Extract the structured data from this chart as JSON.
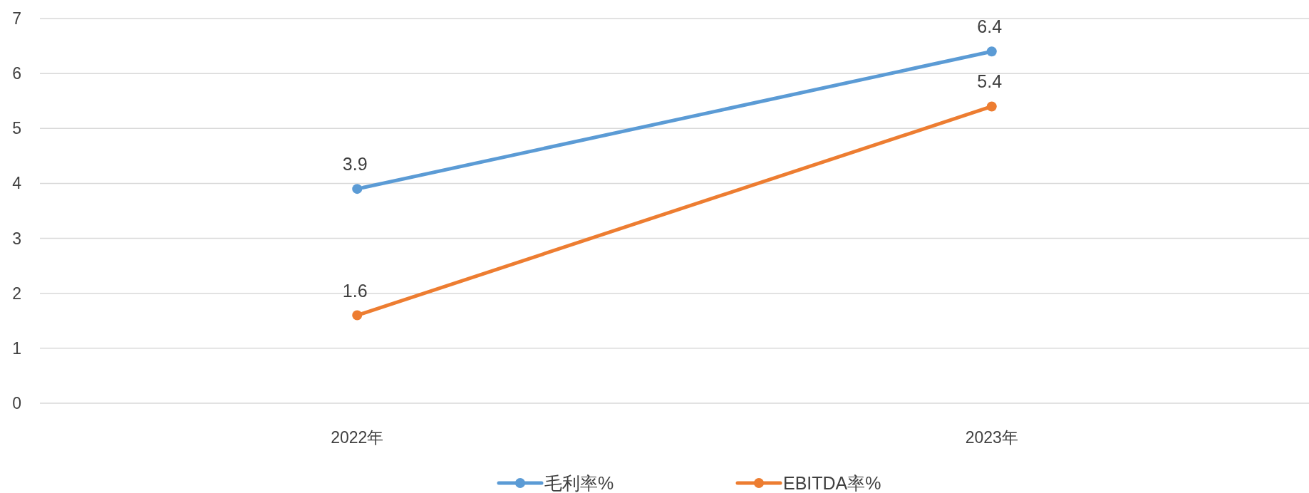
{
  "chart_data": {
    "type": "line",
    "categories": [
      "2022年",
      "2023年"
    ],
    "series": [
      {
        "name": "毛利率%",
        "color": "#5b9bd5",
        "values": [
          3.9,
          6.4
        ]
      },
      {
        "name": "EBITDA率%",
        "color": "#ed7d31",
        "values": [
          1.6,
          5.4
        ]
      }
    ],
    "ylim": [
      0,
      7
    ],
    "yticks": [
      0,
      1,
      2,
      3,
      4,
      5,
      6,
      7
    ],
    "grid": "y",
    "legend": "bottom",
    "marker": "circle",
    "data_labels": true
  }
}
